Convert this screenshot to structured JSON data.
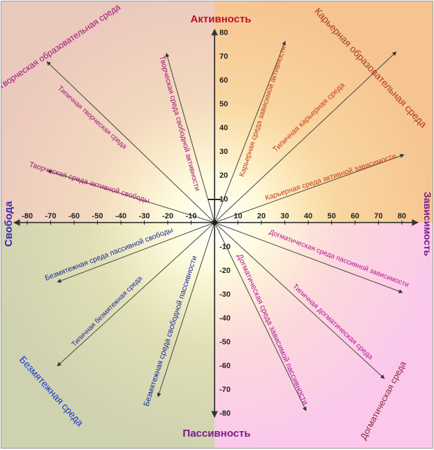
{
  "axes": {
    "top": "Активность",
    "bottom": "Пассивность",
    "left": "Свобода",
    "right": "Зависимость"
  },
  "x_ticks": [
    "-80",
    "-70",
    "-60",
    "-50",
    "-40",
    "-30",
    "-20",
    "-10",
    "10",
    "20",
    "30",
    "40",
    "50",
    "60",
    "70",
    "80"
  ],
  "y_ticks_up": [
    "10",
    "20",
    "30",
    "40",
    "50",
    "60",
    "70",
    "80"
  ],
  "y_ticks_down": [
    "-10",
    "-20",
    "-30",
    "-40",
    "-50",
    "-60",
    "-70",
    "-80"
  ],
  "corners": {
    "top_left": "Творческая образовательная среда",
    "top_right": "Карьерная образовательная среда",
    "bottom_left": "Безмятежная среда",
    "bottom_right": "Догматическая среда"
  },
  "spokes": {
    "creative_typical": "Типичная творческая среда",
    "creative_active_freedom": "Творческая среда активной свободы",
    "creative_free_activity": "Творческая среда свободной активности",
    "career_dependent_activity": "Карьерная среда зависимой активности",
    "career_typical": "Типичная карьерная среда",
    "career_active_dependence": "Карьерная среда активной зависимости",
    "dogmatic_passive_dependence": "Догматическая среда пассивной зависимости",
    "dogmatic_typical": "Типичная догматическая среда",
    "dogmatic_dependent_passivity": "Догматическая среда зависимой пассивности",
    "serene_passive_freedom": "Безмятежная среда пассивной свободы",
    "serene_typical": "Типичная безмятежная среда",
    "serene_free_passivity": "Безмятежная среда свободной пассивности"
  },
  "colors": {
    "top_label": "#c0102a",
    "side_labels": "#7a1a8c",
    "creative": "#a0147a",
    "career": "#c8401a",
    "dogmatic": "#b0189a",
    "serene": "#1a2a9a",
    "serene_corner": "#1a3ad0",
    "dogmatic_corner": "#8a2a3a",
    "axis": "#333333"
  }
}
